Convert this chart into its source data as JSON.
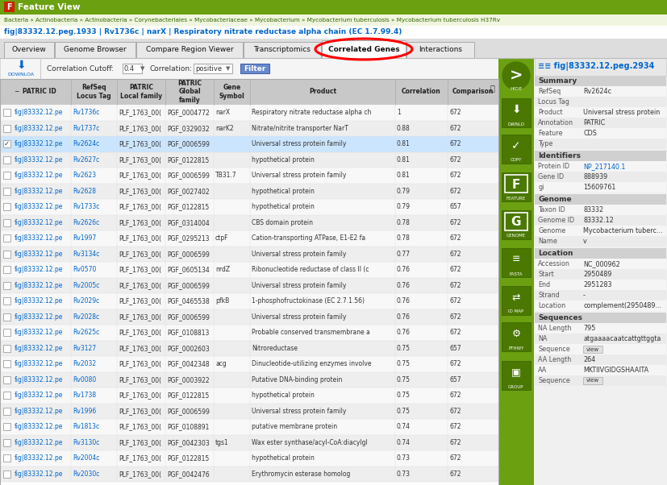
{
  "fig_width": 8.27,
  "fig_height": 6.02,
  "bg_color": "#ffffff",
  "breadcrumb": "Bacteria » Actinobacteria » Actinobacteria » Corynebacteriales » Mycobacteriaceae » Mycobacterium » Mycobacterium tuberculosis » Mycobacterium tuberculosis H37Rv",
  "feature_line": "fig|83332.12.peg.1933 | Rv1736c | narX | Respiratory nitrate reductase alpha chain (EC 1.7.99.4)",
  "tabs": [
    "Overview",
    "Genome Browser",
    "Compare Region Viewer",
    "Transcriptomics",
    "Correlated Genes",
    "Interactions"
  ],
  "selected_tab": "Correlated Genes",
  "correlation_cutoff": "0.4",
  "correlation_type": "positive",
  "sidebar_title": "fig|83332.12.peg.2934",
  "sidebar_green": "#6ba010",
  "sidebar_dark_green": "#5a8a00",
  "sidebar_buttons": [
    "HIDE",
    "DWNLD",
    "COPY",
    "FEATURE",
    "GENOME",
    "FASTA",
    "ID MAP",
    "PTHWY",
    "GROUP"
  ],
  "link_color": "#0066cc",
  "green_link_color": "#336600",
  "filter_btn_color": "#5588cc",
  "table_selected_row": "#cce5ff",
  "selected_row_idx": 2,
  "summary_items": [
    [
      "RefSeq",
      "Rv2624c"
    ],
    [
      "Locus Tag",
      ""
    ],
    [
      "Product",
      "Universal stress protein"
    ],
    [
      "Annotation",
      "PATRIC"
    ],
    [
      "Feature",
      "CDS"
    ],
    [
      "Type",
      ""
    ]
  ],
  "identifiers_items": [
    [
      "Protein ID",
      "NP_217140.1"
    ],
    [
      "Gene ID",
      "888939"
    ],
    [
      "gi",
      "15609761"
    ]
  ],
  "genome_items": [
    [
      "Taxon ID",
      "83332"
    ],
    [
      "Genome ID",
      "83332.12"
    ],
    [
      "Genome",
      "Mycobacterium tuberc..."
    ],
    [
      "Name",
      "v"
    ]
  ],
  "location_items": [
    [
      "Accession",
      "NC_000962"
    ],
    [
      "Start",
      "2950489"
    ],
    [
      "End",
      "2951283"
    ],
    [
      "Strand",
      "-"
    ],
    [
      "Location",
      "complement(2950489..."
    ]
  ],
  "sequences_items": [
    [
      "NA Length",
      "795"
    ],
    [
      "NA",
      "atgaaaacaatcattgttggta"
    ],
    [
      "Sequence",
      "view"
    ],
    [
      "AA Length",
      "264"
    ],
    [
      "AA",
      "MKTIIVGIDGSHAAITA"
    ],
    [
      "Sequence",
      "view"
    ]
  ],
  "table_rows": [
    [
      "fig|83332.12.pe",
      "Rv1736c",
      "PLF_1763_00(",
      "PGF_0004772",
      "narX",
      "Respiratory nitrate reductase alpha ch",
      "1",
      "672"
    ],
    [
      "fig|83332.12.pe",
      "Rv1737c",
      "PLF_1763_00(",
      "PGF_0329032",
      "narK2",
      "Nitrate/nitrite transporter NarT",
      "0.88",
      "672"
    ],
    [
      "fig|83332.12.pe",
      "Rv2624c",
      "PLF_1763_00(",
      "PGF_0006599",
      "",
      "Universal stress protein family",
      "0.81",
      "672"
    ],
    [
      "fig|83332.12.pe",
      "Rv2627c",
      "PLF_1763_00(",
      "PGF_0122815",
      "",
      "hypothetical protein",
      "0.81",
      "672"
    ],
    [
      "fig|83332.12.pe",
      "Rv2623",
      "PLF_1763_00(",
      "PGF_0006599",
      "TB31.7",
      "Universal stress protein family",
      "0.81",
      "672"
    ],
    [
      "fig|83332.12.pe",
      "Rv2628",
      "PLF_1763_00(",
      "PGF_0027402",
      "",
      "hypothetical protein",
      "0.79",
      "672"
    ],
    [
      "fig|83332.12.pe",
      "Rv1733c",
      "PLF_1763_00(",
      "PGF_0122815",
      "",
      "hypothetical protein",
      "0.79",
      "657"
    ],
    [
      "fig|83332.12.pe",
      "Rv2626c",
      "PLF_1763_00(",
      "PGF_0314004",
      "",
      "CBS domain protein",
      "0.78",
      "672"
    ],
    [
      "fig|83332.12.pe",
      "Rv1997",
      "PLF_1763_00(",
      "PGF_0295213",
      "ctpF",
      "Cation-transporting ATPase, E1-E2 fa",
      "0.78",
      "672"
    ],
    [
      "fig|83332.12.pe",
      "Rv3134c",
      "PLF_1763_00(",
      "PGF_0006599",
      "",
      "Universal stress protein family",
      "0.77",
      "672"
    ],
    [
      "fig|83332.12.pe",
      "Rv0570",
      "PLF_1763_00(",
      "PGF_0605134",
      "nrdZ",
      "Ribonucleotide reductase of class II (c",
      "0.76",
      "672"
    ],
    [
      "fig|83332.12.pe",
      "Rv2005c",
      "PLF_1763_00(",
      "PGF_0006599",
      "",
      "Universal stress protein family",
      "0.76",
      "672"
    ],
    [
      "fig|83332.12.pe",
      "Rv2029c",
      "PLF_1763_00(",
      "PGF_0465538",
      "pfkB",
      "1-phosphofructokinase (EC 2.7.1.56)",
      "0.76",
      "672"
    ],
    [
      "fig|83332.12.pe",
      "Rv2028c",
      "PLF_1763_00(",
      "PGF_0006599",
      "",
      "Universal stress protein family",
      "0.76",
      "672"
    ],
    [
      "fig|83332.12.pe",
      "Rv2625c",
      "PLF_1763_00(",
      "PGF_0108813",
      "",
      "Probable conserved transmembrane a",
      "0.76",
      "672"
    ],
    [
      "fig|83332.12.pe",
      "Rv3127",
      "PLF_1763_00(",
      "PGF_0002603",
      "",
      "Nitroreductase",
      "0.75",
      "657"
    ],
    [
      "fig|83332.12.pe",
      "Rv2032",
      "PLF_1763_00(",
      "PGF_0042348",
      "acg",
      "Dinucleotide-utilizing enzymes involve",
      "0.75",
      "672"
    ],
    [
      "fig|83332.12.pe",
      "Rv0080",
      "PLF_1763_00(",
      "PGF_0003922",
      "",
      "Putative DNA-binding protein",
      "0.75",
      "657"
    ],
    [
      "fig|83332.12.pe",
      "Rv1738",
      "PLF_1763_00(",
      "PGF_0122815",
      "",
      "hypothetical protein",
      "0.75",
      "672"
    ],
    [
      "fig|83332.12.pe",
      "Rv1996",
      "PLF_1763_00(",
      "PGF_0006599",
      "",
      "Universal stress protein family",
      "0.75",
      "672"
    ],
    [
      "fig|83332.12.pe",
      "Rv1813c",
      "PLF_1763_00(",
      "PGF_0108891",
      "",
      "putative membrane protein",
      "0.74",
      "672"
    ],
    [
      "fig|83332.12.pe",
      "Rv3130c",
      "PLF_1763_00(",
      "PGF_0042303",
      "tgs1",
      "Wax ester synthase/acyl-CoA:diacylgl",
      "0.74",
      "672"
    ],
    [
      "fig|83332.12.pe",
      "Rv2004c",
      "PLF_1763_00(",
      "PGF_0122815",
      "",
      "hypothetical protein",
      "0.73",
      "672"
    ],
    [
      "fig|83332.12.pe",
      "Rv2030c",
      "PLF_1763_00(",
      "PGF_0042476",
      "",
      "Erythromycin esterase homolog",
      "0.73",
      "672"
    ]
  ]
}
